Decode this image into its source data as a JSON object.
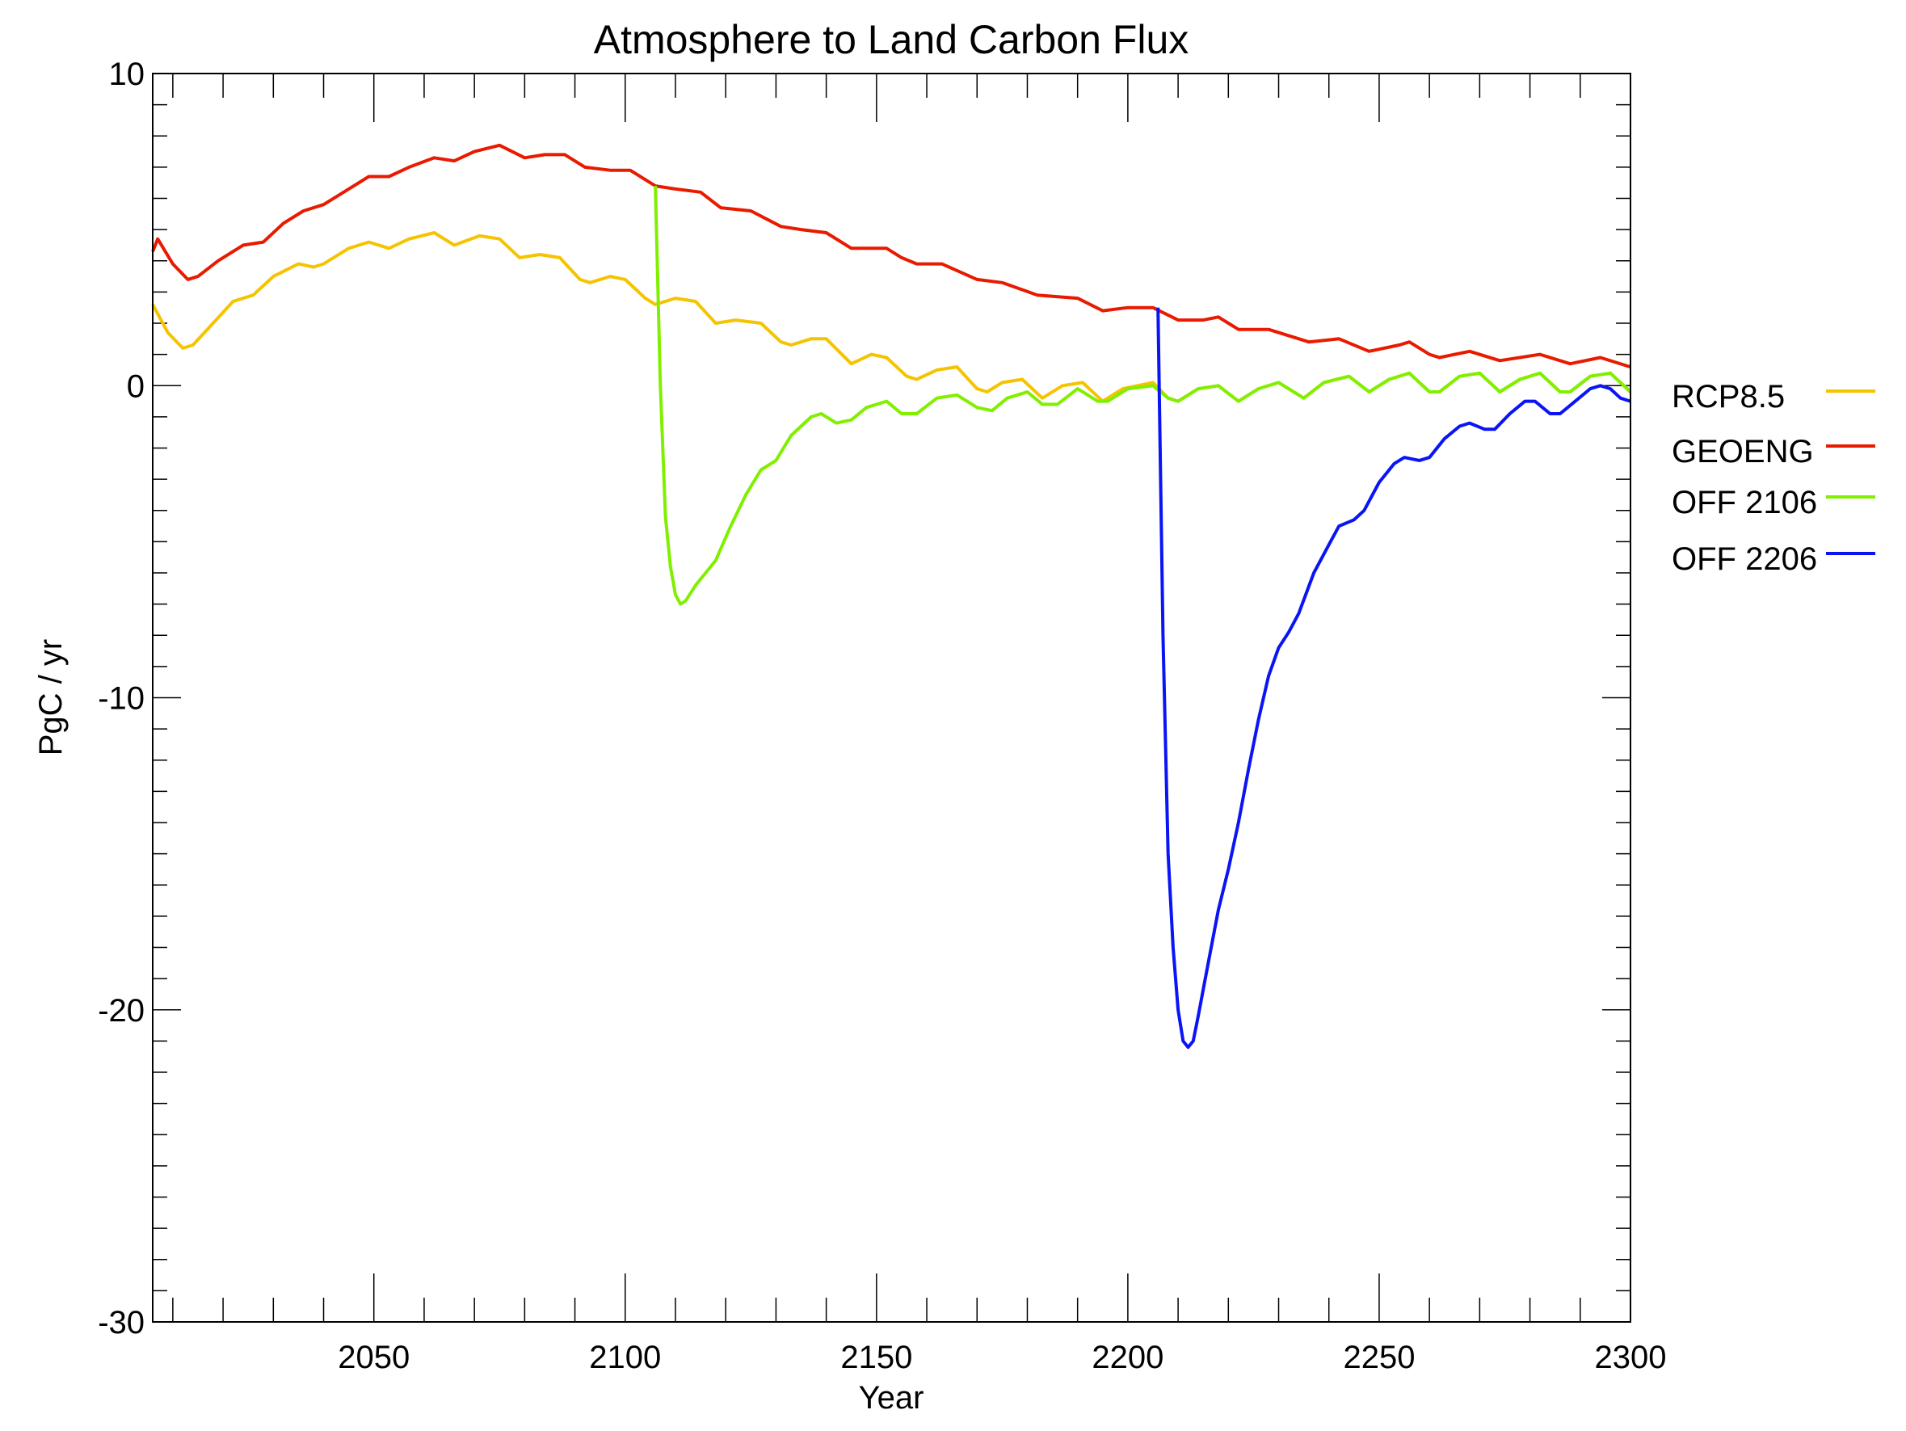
{
  "chart_data": {
    "type": "line",
    "title": "Atmosphere to Land Carbon Flux",
    "xlabel": "Year",
    "ylabel": "PgC / yr",
    "xlim": [
      2006,
      2300
    ],
    "ylim": [
      -30,
      10
    ],
    "xticks": [
      2050,
      2100,
      2150,
      2200,
      2250,
      2300
    ],
    "xtick_labels": [
      "2050",
      "2100",
      "2150",
      "2200",
      "2250",
      "2300"
    ],
    "x_minor_step": 10,
    "yticks": [
      10,
      0,
      -10,
      -20,
      -30
    ],
    "ytick_labels": [
      "10",
      "0",
      "-10",
      "-20",
      "-30"
    ],
    "y_minor_step": 1,
    "grid": false,
    "legend_position": "right",
    "series": [
      {
        "name": "RCP8.5",
        "color": "#f5c400",
        "x": [
          2006,
          2009,
          2012,
          2014,
          2018,
          2022,
          2026,
          2030,
          2035,
          2038,
          2040,
          2045,
          2049,
          2053,
          2057,
          2062,
          2066,
          2071,
          2075,
          2079,
          2083,
          2087,
          2091,
          2093,
          2097,
          2100,
          2104,
          2106,
          2110,
          2114,
          2118,
          2122,
          2127,
          2131,
          2133,
          2137,
          2140,
          2145,
          2149,
          2152,
          2156,
          2158,
          2162,
          2166,
          2170,
          2172,
          2175,
          2179,
          2183,
          2187,
          2191,
          2195,
          2199,
          2205,
          2208,
          2210,
          2214,
          2218,
          2222,
          2226,
          2230,
          2235,
          2239,
          2244,
          2248,
          2252,
          2256,
          2260,
          2262,
          2266,
          2270,
          2274,
          2278,
          2282,
          2286,
          2288,
          2292,
          2296,
          2300
        ],
        "y": [
          2.6,
          1.7,
          1.2,
          1.3,
          2.0,
          2.7,
          2.9,
          3.5,
          3.9,
          3.8,
          3.9,
          4.4,
          4.6,
          4.4,
          4.7,
          4.9,
          4.5,
          4.8,
          4.7,
          4.1,
          4.2,
          4.1,
          3.4,
          3.3,
          3.5,
          3.4,
          2.8,
          2.6,
          2.8,
          2.7,
          2.0,
          2.1,
          2.0,
          1.4,
          1.3,
          1.5,
          1.5,
          0.7,
          1.0,
          0.9,
          0.3,
          0.2,
          0.5,
          0.6,
          -0.1,
          -0.2,
          0.1,
          0.2,
          -0.4,
          0.0,
          0.1,
          -0.5,
          -0.1,
          0.1,
          -0.4,
          -0.5,
          -0.1,
          0.0,
          -0.5,
          -0.1,
          0.1,
          -0.4,
          0.1,
          0.3,
          -0.2,
          0.2,
          0.4,
          -0.2,
          -0.2,
          0.3,
          0.4,
          -0.2,
          0.2,
          0.4,
          -0.2,
          -0.2,
          0.3,
          0.4,
          -0.2
        ]
      },
      {
        "name": "GEOENG",
        "color": "#e81a00",
        "x": [
          2006,
          2007,
          2010,
          2013,
          2015,
          2019,
          2024,
          2028,
          2032,
          2036,
          2040,
          2045,
          2049,
          2053,
          2057,
          2062,
          2066,
          2070,
          2075,
          2080,
          2084,
          2088,
          2092,
          2097,
          2101,
          2106,
          2110,
          2115,
          2119,
          2125,
          2131,
          2135,
          2140,
          2145,
          2152,
          2155,
          2158,
          2163,
          2170,
          2175,
          2182,
          2190,
          2195,
          2200,
          2205,
          2210,
          2215,
          2218,
          2222,
          2228,
          2236,
          2242,
          2248,
          2254,
          2256,
          2260,
          2262,
          2268,
          2274,
          2282,
          2288,
          2294,
          2300
        ],
        "y": [
          4.3,
          4.7,
          3.9,
          3.4,
          3.5,
          4.0,
          4.5,
          4.6,
          5.2,
          5.6,
          5.8,
          6.3,
          6.7,
          6.7,
          7.0,
          7.3,
          7.2,
          7.5,
          7.7,
          7.3,
          7.4,
          7.4,
          7.0,
          6.9,
          6.9,
          6.4,
          6.3,
          6.2,
          5.7,
          5.6,
          5.1,
          5.0,
          4.9,
          4.4,
          4.4,
          4.1,
          3.9,
          3.9,
          3.4,
          3.3,
          2.9,
          2.8,
          2.4,
          2.5,
          2.5,
          2.1,
          2.1,
          2.2,
          1.8,
          1.8,
          1.4,
          1.5,
          1.1,
          1.3,
          1.4,
          1.0,
          0.9,
          1.1,
          0.8,
          1.0,
          0.7,
          0.9,
          0.6
        ]
      },
      {
        "name": "OFF 2106",
        "color": "#80f000",
        "x": [
          2106,
          2107,
          2108,
          2109,
          2110,
          2111,
          2112,
          2114,
          2118,
          2121,
          2124,
          2127,
          2130,
          2133,
          2137,
          2139,
          2142,
          2145,
          2148,
          2152,
          2155,
          2158,
          2162,
          2166,
          2170,
          2173,
          2176,
          2180,
          2183,
          2186,
          2190,
          2194,
          2196,
          2200,
          2205,
          2208,
          2210,
          2214,
          2218,
          2222,
          2226,
          2230,
          2235,
          2239,
          2244,
          2248,
          2252,
          2256,
          2260,
          2262,
          2266,
          2270,
          2274,
          2278,
          2282,
          2286,
          2288,
          2292,
          2296,
          2300
        ],
        "y": [
          6.4,
          0.0,
          -4.2,
          -5.8,
          -6.7,
          -7.0,
          -6.9,
          -6.4,
          -5.6,
          -4.5,
          -3.5,
          -2.7,
          -2.4,
          -1.6,
          -1.0,
          -0.9,
          -1.2,
          -1.1,
          -0.7,
          -0.5,
          -0.9,
          -0.9,
          -0.4,
          -0.3,
          -0.7,
          -0.8,
          -0.4,
          -0.2,
          -0.6,
          -0.6,
          -0.1,
          -0.5,
          -0.5,
          -0.1,
          0.0,
          -0.4,
          -0.5,
          -0.1,
          0.0,
          -0.5,
          -0.1,
          0.1,
          -0.4,
          0.1,
          0.3,
          -0.2,
          0.2,
          0.4,
          -0.2,
          -0.2,
          0.3,
          0.4,
          -0.2,
          0.2,
          0.4,
          -0.2,
          -0.2,
          0.3,
          0.4,
          -0.2
        ]
      },
      {
        "name": "OFF 2206",
        "color": "#0a14f5",
        "x": [
          2206,
          2207,
          2208,
          2209,
          2210,
          2211,
          2212,
          2213,
          2214,
          2216,
          2218,
          2220,
          2222,
          2224,
          2226,
          2228,
          2230,
          2232,
          2234,
          2237,
          2240,
          2242,
          2245,
          2247,
          2250,
          2253,
          2255,
          2258,
          2260,
          2263,
          2266,
          2268,
          2271,
          2273,
          2276,
          2279,
          2281,
          2284,
          2286,
          2289,
          2292,
          2294,
          2296,
          2298,
          2300
        ],
        "y": [
          2.5,
          -8.0,
          -15.0,
          -18.0,
          -20.0,
          -21.0,
          -21.2,
          -21.0,
          -20.2,
          -18.5,
          -16.8,
          -15.5,
          -14.0,
          -12.3,
          -10.7,
          -9.3,
          -8.4,
          -7.9,
          -7.3,
          -6.0,
          -5.1,
          -4.5,
          -4.3,
          -4.0,
          -3.1,
          -2.5,
          -2.3,
          -2.4,
          -2.3,
          -1.7,
          -1.3,
          -1.2,
          -1.4,
          -1.4,
          -0.9,
          -0.5,
          -0.5,
          -0.9,
          -0.9,
          -0.5,
          -0.1,
          0.0,
          -0.1,
          -0.4,
          -0.5
        ]
      }
    ]
  }
}
